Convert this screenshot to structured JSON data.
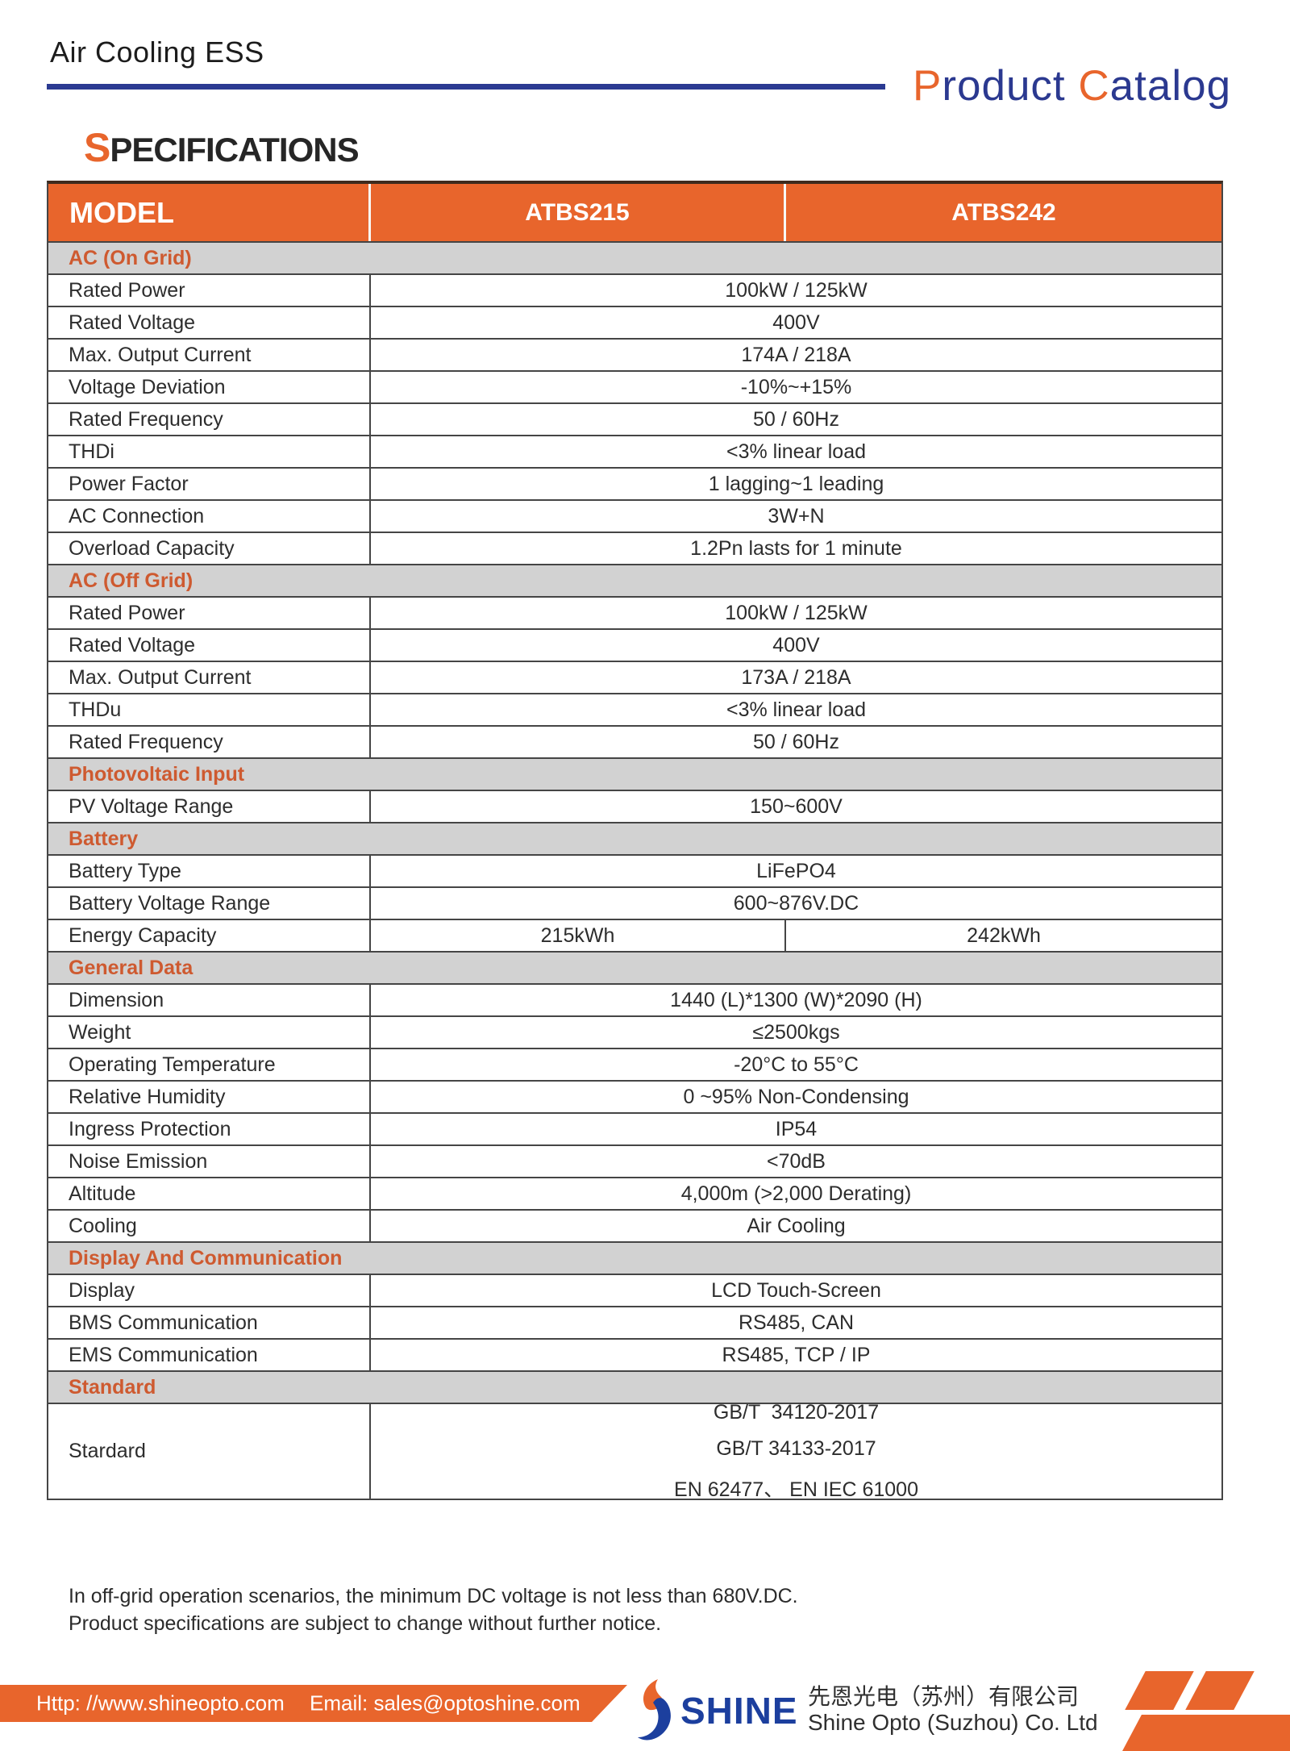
{
  "header": {
    "title": "Air Cooling ESS",
    "catalog": {
      "p1": "P",
      "p2": "roduct ",
      "c1": "C",
      "c2": "atalog"
    },
    "spec_s": "S",
    "spec_rest": "PECIFICATIONS"
  },
  "table": {
    "columns": {
      "model": "MODEL",
      "col1": "ATBS215",
      "col2": "ATBS242"
    },
    "rows": [
      {
        "type": "section",
        "label": "AC (On Grid)"
      },
      {
        "type": "row",
        "label": "Rated Power",
        "value": "100kW / 125kW"
      },
      {
        "type": "row",
        "label": "Rated Voltage",
        "value": "400V"
      },
      {
        "type": "row",
        "label": "Max. Output Current",
        "value": "174A / 218A"
      },
      {
        "type": "row",
        "label": "Voltage Deviation",
        "value": "-10%~+15%"
      },
      {
        "type": "row",
        "label": "Rated Frequency",
        "value": "50 / 60Hz"
      },
      {
        "type": "row",
        "label": "THDi",
        "value": "<3% linear load"
      },
      {
        "type": "row",
        "label": "Power Factor",
        "value": "1 lagging~1 leading"
      },
      {
        "type": "row",
        "label": "AC Connection",
        "value": "3W+N"
      },
      {
        "type": "row",
        "label": "Overload Capacity",
        "value": "1.2Pn lasts for 1 minute"
      },
      {
        "type": "section",
        "label": "AC (Off Grid)"
      },
      {
        "type": "row",
        "label": "Rated Power",
        "value": "100kW / 125kW"
      },
      {
        "type": "row",
        "label": "Rated Voltage",
        "value": "400V"
      },
      {
        "type": "row",
        "label": "Max. Output Current",
        "value": "173A / 218A"
      },
      {
        "type": "row",
        "label": "THDu",
        "value": "<3% linear load"
      },
      {
        "type": "row",
        "label": "Rated Frequency",
        "value": "50 / 60Hz"
      },
      {
        "type": "section",
        "label": "Photovoltaic Input"
      },
      {
        "type": "row",
        "label": "PV Voltage Range",
        "value": "150~600V"
      },
      {
        "type": "section",
        "label": "Battery"
      },
      {
        "type": "row",
        "label": "Battery Type",
        "value": "LiFePO4"
      },
      {
        "type": "row",
        "label": "Battery Voltage Range",
        "value": "600~876V.DC"
      },
      {
        "type": "split",
        "label": "Energy Capacity",
        "value1": "215kWh",
        "value2": "242kWh"
      },
      {
        "type": "section",
        "label": "General Data"
      },
      {
        "type": "row",
        "label": "Dimension",
        "value": "1440 (L)*1300 (W)*2090 (H)"
      },
      {
        "type": "row",
        "label": "Weight",
        "value": "≤2500kgs"
      },
      {
        "type": "row",
        "label": "Operating Temperature",
        "value": "-20°C to 55°C"
      },
      {
        "type": "row",
        "label": "Relative Humidity",
        "value": "0 ~95% Non-Condensing"
      },
      {
        "type": "row",
        "label": "Ingress Protection",
        "value": "IP54"
      },
      {
        "type": "row",
        "label": "Noise Emission",
        "value": "<70dB"
      },
      {
        "type": "row",
        "label": "Altitude",
        "value": "4,000m (>2,000 Derating)"
      },
      {
        "type": "row",
        "label": "Cooling",
        "value": "Air Cooling"
      },
      {
        "type": "section",
        "label": "Display And Communication"
      },
      {
        "type": "row",
        "label": "Display",
        "value": "LCD Touch-Screen"
      },
      {
        "type": "row",
        "label": "BMS Communication",
        "value": "RS485, CAN"
      },
      {
        "type": "row",
        "label": "EMS Communication",
        "value": "RS485, TCP / IP"
      },
      {
        "type": "section",
        "label": "Standard"
      },
      {
        "type": "multi",
        "label": "Stardard",
        "values": [
          "GB/T  34120-2017",
          "GB/T 34133-2017",
          "EN 62477、 EN IEC 61000"
        ]
      }
    ]
  },
  "notes": {
    "line1": "In off-grid operation scenarios, the minimum DC voltage is not less than 680V.DC.",
    "line2": "Product specifications are subject to change without further notice."
  },
  "footer": {
    "url": "Http: //www.shineopto.com",
    "email": "Email: sales@optoshine.com",
    "brand": "SHINE",
    "company_cn": "先恩光电（苏州）有限公司",
    "company_en": "Shine Opto (Suzhou) Co. Ltd"
  },
  "colors": {
    "orange": "#E8652C",
    "section_text": "#CE5A30",
    "section_bg": "#D2D2D2",
    "rule_blue": "#2B3A92",
    "catalog_blue": "#2B3990",
    "brand_blue": "#1C3F9E"
  }
}
